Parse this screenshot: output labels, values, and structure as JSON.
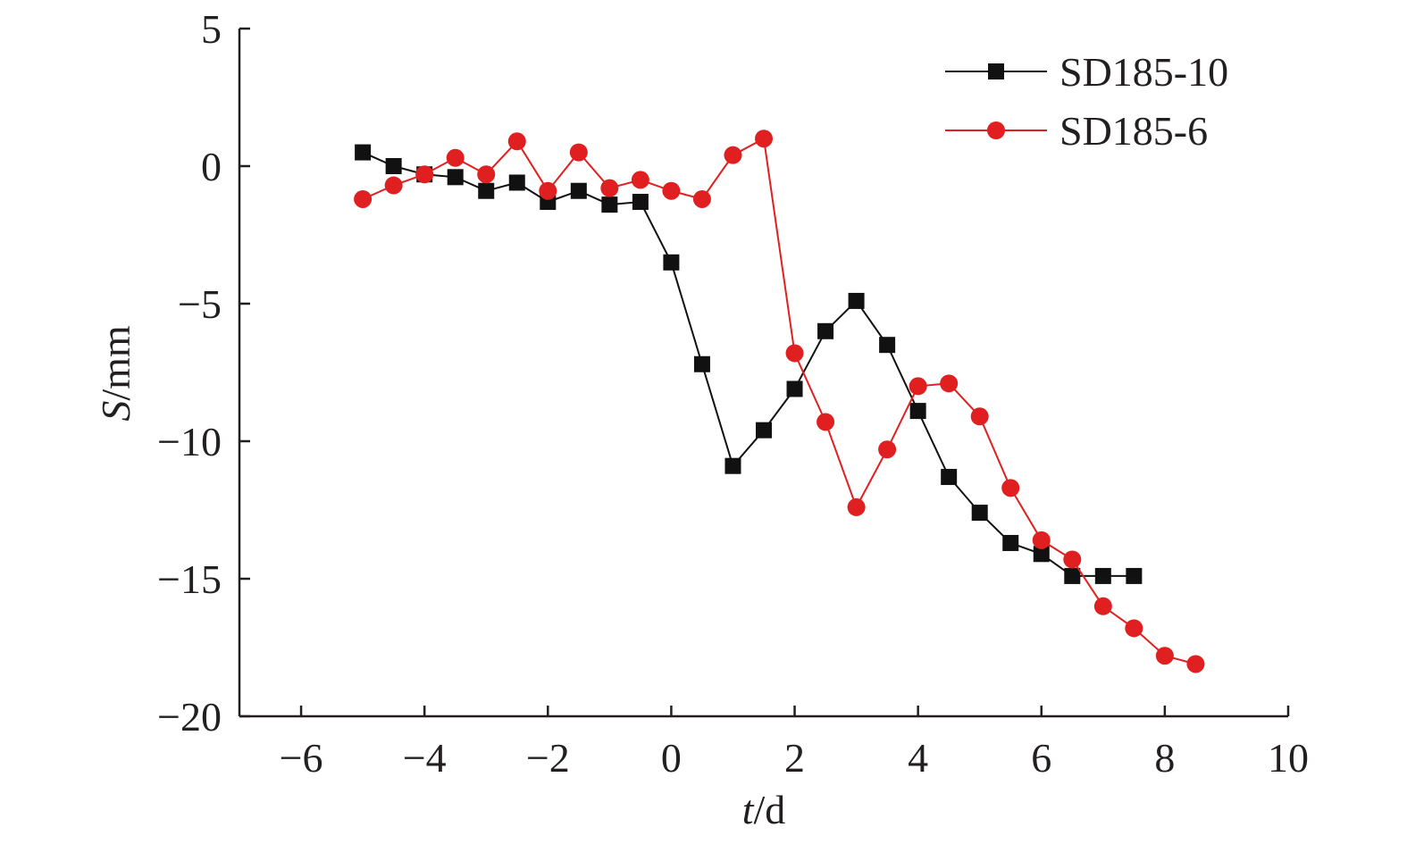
{
  "chart_data": {
    "type": "line",
    "xlabel_var": "t",
    "xlabel_unit": "/d",
    "ylabel_var": "S",
    "ylabel_unit": "/mm",
    "xlim": [
      -7,
      10
    ],
    "ylim": [
      -20,
      5
    ],
    "x_ticks": [
      -6,
      -4,
      -2,
      0,
      2,
      4,
      6,
      8,
      10
    ],
    "y_ticks": [
      5,
      0,
      -5,
      -10,
      -15,
      -20
    ],
    "legend_position": "top-right",
    "series": [
      {
        "name": "SD185-10",
        "color": "#111111",
        "marker": "square",
        "points": [
          [
            -5,
            0.5
          ],
          [
            -4.5,
            0
          ],
          [
            -4,
            -0.3
          ],
          [
            -3.5,
            -0.4
          ],
          [
            -3,
            -0.9
          ],
          [
            -2.5,
            -0.6
          ],
          [
            -2,
            -1.3
          ],
          [
            -1.5,
            -0.9
          ],
          [
            -1,
            -1.4
          ],
          [
            -0.5,
            -1.3
          ],
          [
            0,
            -3.5
          ],
          [
            0.5,
            -7.2
          ],
          [
            1,
            -10.9
          ],
          [
            1.5,
            -9.6
          ],
          [
            2,
            -8.1
          ],
          [
            2.5,
            -6
          ],
          [
            3,
            -4.9
          ],
          [
            3.5,
            -6.5
          ],
          [
            4,
            -8.9
          ],
          [
            4.5,
            -11.3
          ],
          [
            5,
            -12.6
          ],
          [
            5.5,
            -13.7
          ],
          [
            6,
            -14.1
          ],
          [
            6.5,
            -14.9
          ],
          [
            7,
            -14.9
          ],
          [
            7.5,
            -14.9
          ]
        ]
      },
      {
        "name": "SD185-6",
        "color": "#e02020",
        "marker": "circle",
        "points": [
          [
            -5,
            -1.2
          ],
          [
            -4.5,
            -0.7
          ],
          [
            -4,
            -0.3
          ],
          [
            -3.5,
            0.3
          ],
          [
            -3,
            -0.3
          ],
          [
            -2.5,
            0.9
          ],
          [
            -2,
            -0.9
          ],
          [
            -1.5,
            0.5
          ],
          [
            -1,
            -0.8
          ],
          [
            -0.5,
            -0.5
          ],
          [
            0,
            -0.9
          ],
          [
            0.5,
            -1.2
          ],
          [
            1,
            0.4
          ],
          [
            1.5,
            1
          ],
          [
            2,
            -6.8
          ],
          [
            2.5,
            -9.3
          ],
          [
            3,
            -12.4
          ],
          [
            3.5,
            -10.3
          ],
          [
            4,
            -8
          ],
          [
            4.5,
            -7.9
          ],
          [
            5,
            -9.1
          ],
          [
            5.5,
            -11.7
          ],
          [
            6,
            -13.6
          ],
          [
            6.5,
            -14.3
          ],
          [
            7,
            -16
          ],
          [
            7.5,
            -16.8
          ],
          [
            8,
            -17.8
          ],
          [
            8.5,
            -18.1
          ]
        ]
      }
    ]
  }
}
